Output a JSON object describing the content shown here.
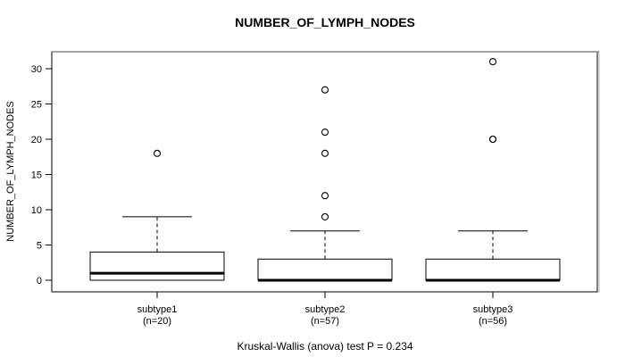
{
  "chart_data": {
    "type": "boxplot",
    "title": "NUMBER_OF_LYMPH_NODES",
    "ylabel": "NUMBER_OF_LYMPH_NODES",
    "xlabel": "",
    "caption": "Kruskal-Wallis (anova) test P = 0.234",
    "y_ticks": [
      0,
      5,
      10,
      15,
      20,
      25,
      30
    ],
    "ylim": [
      -1.6,
      32.6
    ],
    "grid": false,
    "legend": null,
    "groups": [
      {
        "label": "subtype1",
        "sublabel": "(n=20)",
        "n": 20,
        "q1": 0,
        "median": 1,
        "q3": 4,
        "whisker_low": 0,
        "whisker_high": 9,
        "outliers": [
          18
        ]
      },
      {
        "label": "subtype2",
        "sublabel": "(n=57)",
        "n": 57,
        "q1": 0,
        "median": 0,
        "q3": 3,
        "whisker_low": 0,
        "whisker_high": 7,
        "outliers": [
          9,
          12,
          18,
          21,
          27
        ]
      },
      {
        "label": "subtype3",
        "sublabel": "(n=56)",
        "n": 56,
        "q1": 0,
        "median": 0,
        "q3": 3,
        "whisker_low": 0,
        "whisker_high": 7,
        "outliers": [
          20,
          20,
          31
        ]
      }
    ],
    "colors": {
      "box_fill": "#ffffff",
      "stroke": "#000000",
      "frame_top": "#878787",
      "frame_shadow": "#b4b4b4"
    }
  }
}
